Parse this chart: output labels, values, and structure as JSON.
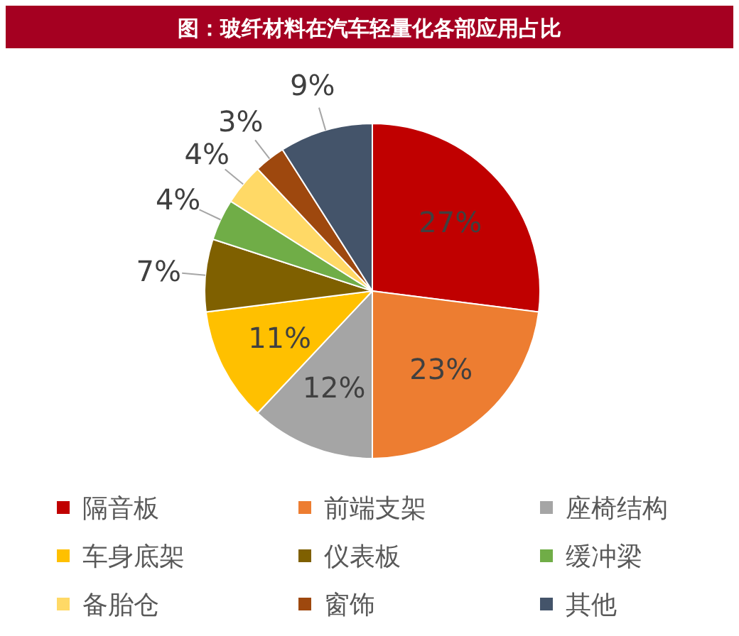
{
  "chart_data": {
    "type": "pie",
    "title": "图：玻纤材料在汽车轻量化各部应用占比",
    "categories": [
      "隔音板",
      "前端支架",
      "座椅结构",
      "车身底架",
      "仪表板",
      "缓冲梁",
      "备胎仓",
      "窗饰",
      "其他"
    ],
    "values": [
      27,
      23,
      12,
      11,
      7,
      4,
      4,
      3,
      9
    ],
    "value_labels": [
      "27%",
      "23%",
      "12%",
      "11%",
      "7%",
      "4%",
      "4%",
      "3%",
      "9%"
    ],
    "colors": [
      "#c00000",
      "#ed7d31",
      "#a5a5a5",
      "#ffc000",
      "#7f6000",
      "#70ad47",
      "#ffd966",
      "#9e480e",
      "#44546a"
    ],
    "legend": "bottom"
  }
}
